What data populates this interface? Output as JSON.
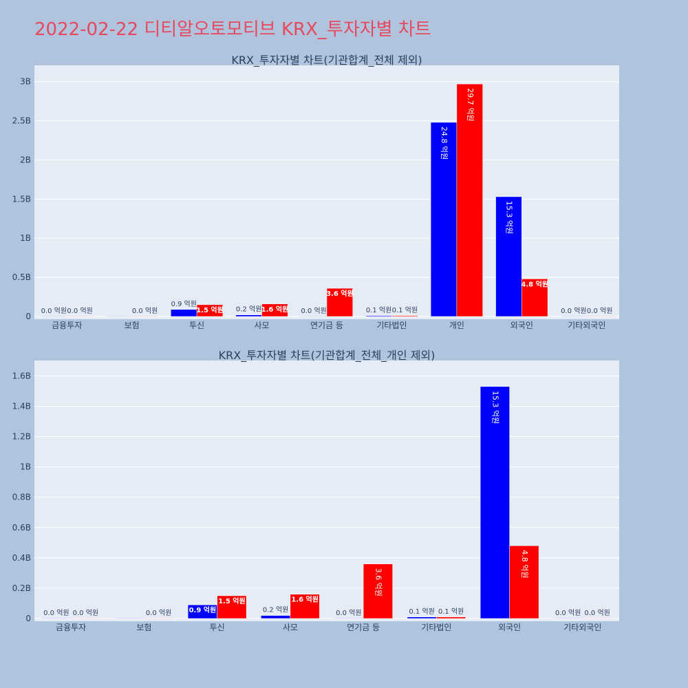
{
  "page": {
    "title": "2022-02-22 디티알오토모티브 KRX_투자자별 차트"
  },
  "colors": {
    "background": "#b0c4de",
    "plot_bg": "#e5ecf6",
    "title": "#e8485e",
    "series1": "#0000ff",
    "series2": "#ff0000"
  },
  "chart_data": [
    {
      "type": "bar",
      "title": "KRX_투자자별 차트(기관합계_전체 제외)",
      "categories": [
        "금융투자",
        "보험",
        "투신",
        "사모",
        "연기금 등",
        "기타법인",
        "개인",
        "외국인",
        "기타외국인"
      ],
      "series": [
        {
          "color": "#0000ff",
          "values": [
            0.0,
            0.0,
            0.09,
            0.02,
            0.0,
            0.01,
            2.48,
            1.53,
            0.0
          ],
          "labels": [
            "0.0 억원",
            "",
            "0.9 억원",
            "0.2 억원",
            "0.0 억원",
            "0.1 억원",
            "24.8 억원",
            "15.3 억원",
            "0.0 억원"
          ]
        },
        {
          "color": "#ff0000",
          "values": [
            0.0,
            0.0,
            0.15,
            0.16,
            0.36,
            0.01,
            2.97,
            0.48,
            0.0
          ],
          "labels": [
            "0.0 억원",
            "0.0 억원",
            "1.5 억원",
            "1.6 억원",
            "3.6 억원",
            "0.1 억원",
            "29.7 억원",
            "4.8 억원",
            "0.0 억원"
          ]
        }
      ],
      "yticks": [
        0,
        0.5,
        1,
        1.5,
        2,
        2.5,
        3
      ],
      "ytick_labels": [
        "0",
        "0.5B",
        "1B",
        "1.5B",
        "2B",
        "2.5B",
        "3B"
      ],
      "ylim": [
        0,
        3.05
      ],
      "grid": true
    },
    {
      "type": "bar",
      "title": "KRX_투자자별 차트(기관합계_전체_개인 제외)",
      "categories": [
        "금융투자",
        "보험",
        "투신",
        "사모",
        "연기금 등",
        "기타법인",
        "외국인",
        "기타외국인"
      ],
      "series": [
        {
          "color": "#0000ff",
          "values": [
            0.0,
            0.0,
            0.09,
            0.02,
            0.0,
            0.01,
            1.53,
            0.0
          ],
          "labels": [
            "0.0 억원",
            "",
            "0.9 억원",
            "0.2 억원",
            "0.0 억원",
            "0.1 억원",
            "15.3 억원",
            "0.0 억원"
          ]
        },
        {
          "color": "#ff0000",
          "values": [
            0.0,
            0.0,
            0.15,
            0.16,
            0.36,
            0.01,
            0.48,
            0.0
          ],
          "labels": [
            "0.0 억원",
            "0.0 억원",
            "1.5 억원",
            "1.6 억원",
            "3.6 억원",
            "0.1 억원",
            "4.8 억원",
            "0.0 억원"
          ]
        }
      ],
      "yticks": [
        0,
        0.2,
        0.4,
        0.6,
        0.8,
        1,
        1.2,
        1.4,
        1.6
      ],
      "ytick_labels": [
        "0",
        "0.2B",
        "0.4B",
        "0.6B",
        "0.8B",
        "1B",
        "1.2B",
        "1.4B",
        "1.6B"
      ],
      "ylim": [
        0,
        1.62
      ],
      "grid": true
    }
  ]
}
